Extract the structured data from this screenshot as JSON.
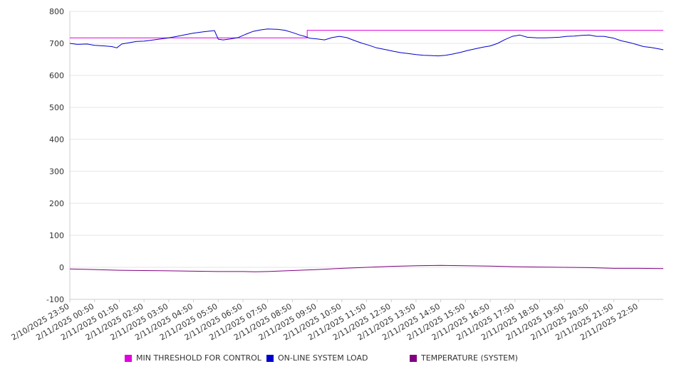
{
  "chart_data": {
    "type": "line",
    "title": "",
    "xlabel": "",
    "ylabel": "",
    "ylim": [
      -100,
      800
    ],
    "yticks": [
      -100,
      0,
      100,
      200,
      300,
      400,
      500,
      600,
      700,
      800
    ],
    "grid": true,
    "legend_position": "bottom",
    "xticks": [
      "2/10/2025 23:50",
      "2/11/2025 00:50",
      "2/11/2025 01:50",
      "2/11/2025 02:50",
      "2/11/2025 03:50",
      "2/11/2025 04:50",
      "2/11/2025 05:50",
      "2/11/2025 06:50",
      "2/11/2025 07:50",
      "2/11/2025 08:50",
      "2/11/2025 09:50",
      "2/11/2025 10:50",
      "2/11/2025 11:50",
      "2/11/2025 12:50",
      "2/11/2025 13:50",
      "2/11/2025 14:50",
      "2/11/2025 15:50",
      "2/11/2025 16:50",
      "2/11/2025 17:50",
      "2/11/2025 18:50",
      "2/11/2025 19:50",
      "2/11/2025 20:50",
      "2/11/2025 21:50",
      "2/11/2025 22:50"
    ],
    "x_hours_end": 24,
    "series": [
      {
        "name": "MIN THRESHOLD FOR CONTROL",
        "color": "#e000e0",
        "points": [
          [
            0,
            717
          ],
          [
            9.6,
            717
          ],
          [
            9.6,
            741
          ],
          [
            24,
            741
          ]
        ]
      },
      {
        "name": "ON-LINE SYSTEM LOAD",
        "color": "#0000cc",
        "points": [
          [
            0,
            700
          ],
          [
            0.3,
            697
          ],
          [
            0.7,
            698
          ],
          [
            1.0,
            694
          ],
          [
            1.4,
            692
          ],
          [
            1.7,
            690
          ],
          [
            1.9,
            686
          ],
          [
            2.1,
            698
          ],
          [
            2.4,
            702
          ],
          [
            2.7,
            706
          ],
          [
            3.0,
            707
          ],
          [
            3.3,
            710
          ],
          [
            3.6,
            713
          ],
          [
            3.9,
            716
          ],
          [
            4.2,
            720
          ],
          [
            4.6,
            726
          ],
          [
            5.0,
            732
          ],
          [
            5.4,
            736
          ],
          [
            5.85,
            740
          ],
          [
            6.0,
            713
          ],
          [
            6.2,
            711
          ],
          [
            6.5,
            714
          ],
          [
            6.8,
            718
          ],
          [
            7.1,
            728
          ],
          [
            7.4,
            737
          ],
          [
            7.7,
            742
          ],
          [
            8.0,
            745
          ],
          [
            8.4,
            744
          ],
          [
            8.7,
            741
          ],
          [
            9.0,
            734
          ],
          [
            9.3,
            726
          ],
          [
            9.5,
            722
          ],
          [
            9.7,
            716
          ],
          [
            10.0,
            714
          ],
          [
            10.3,
            711
          ],
          [
            10.6,
            718
          ],
          [
            10.9,
            722
          ],
          [
            11.2,
            718
          ],
          [
            11.5,
            709
          ],
          [
            11.8,
            701
          ],
          [
            12.1,
            694
          ],
          [
            12.4,
            686
          ],
          [
            12.8,
            680
          ],
          [
            13.1,
            675
          ],
          [
            13.4,
            671
          ],
          [
            13.7,
            668
          ],
          [
            14.0,
            665
          ],
          [
            14.3,
            663
          ],
          [
            14.6,
            662
          ],
          [
            14.9,
            661
          ],
          [
            15.2,
            663
          ],
          [
            15.5,
            667
          ],
          [
            15.8,
            672
          ],
          [
            16.1,
            678
          ],
          [
            16.4,
            683
          ],
          [
            16.7,
            688
          ],
          [
            17.0,
            692
          ],
          [
            17.3,
            700
          ],
          [
            17.6,
            712
          ],
          [
            17.9,
            722
          ],
          [
            18.2,
            726
          ],
          [
            18.5,
            719
          ],
          [
            18.9,
            717
          ],
          [
            19.2,
            717
          ],
          [
            19.5,
            718
          ],
          [
            19.8,
            719
          ],
          [
            20.1,
            722
          ],
          [
            20.4,
            723
          ],
          [
            20.7,
            725
          ],
          [
            21.0,
            726
          ],
          [
            21.3,
            722
          ],
          [
            21.6,
            722
          ],
          [
            22.0,
            716
          ],
          [
            22.3,
            708
          ],
          [
            22.6,
            703
          ],
          [
            22.9,
            697
          ],
          [
            23.2,
            690
          ],
          [
            23.5,
            687
          ],
          [
            23.8,
            683
          ],
          [
            24,
            680
          ]
        ]
      },
      {
        "name": "TEMPERATURE (SYSTEM)",
        "color": "#800080",
        "points": [
          [
            0,
            -5
          ],
          [
            1.0,
            -7
          ],
          [
            2.0,
            -9
          ],
          [
            3.0,
            -10
          ],
          [
            4.0,
            -11
          ],
          [
            5.0,
            -12
          ],
          [
            6.0,
            -13
          ],
          [
            7.0,
            -13
          ],
          [
            7.5,
            -14
          ],
          [
            8.0,
            -13
          ],
          [
            9.0,
            -10
          ],
          [
            10.0,
            -7
          ],
          [
            11.0,
            -3
          ],
          [
            12.0,
            0
          ],
          [
            13.0,
            3
          ],
          [
            14.0,
            5
          ],
          [
            15.0,
            6
          ],
          [
            16.0,
            5
          ],
          [
            17.0,
            4
          ],
          [
            18.0,
            2
          ],
          [
            19.0,
            1
          ],
          [
            20.0,
            0
          ],
          [
            21.0,
            -1
          ],
          [
            22.0,
            -3
          ],
          [
            23.0,
            -3
          ],
          [
            24,
            -4
          ]
        ]
      }
    ]
  }
}
